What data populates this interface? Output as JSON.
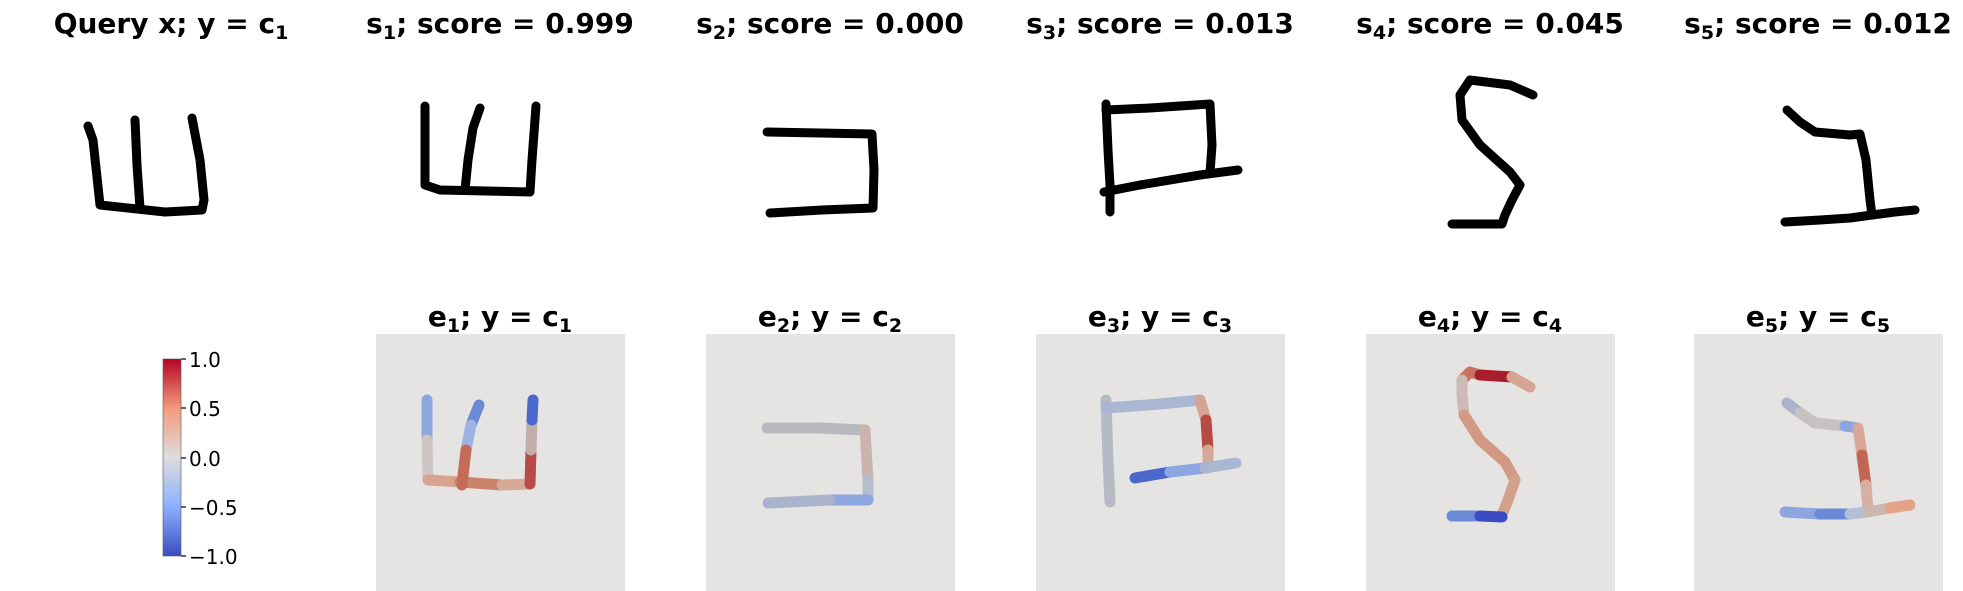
{
  "query": {
    "title_main": "Query x; y",
    "eq": " = ",
    "title_c": "c",
    "title_sub": "1"
  },
  "support": [
    {
      "id": "s1",
      "letter": "s",
      "sub": "1",
      "suffix": "; score = 0.999"
    },
    {
      "id": "s2",
      "letter": "s",
      "sub": "2",
      "suffix": "; score = 0.000"
    },
    {
      "id": "s3",
      "letter": "s",
      "sub": "3",
      "suffix": "; score = 0.013"
    },
    {
      "id": "s4",
      "letter": "s",
      "sub": "4",
      "suffix": "; score = 0.045"
    },
    {
      "id": "s5",
      "letter": "s",
      "sub": "5",
      "suffix": "; score = 0.012"
    }
  ],
  "explanations": [
    {
      "id": "e1",
      "letter": "e",
      "sub": "1",
      "mid": "; y",
      "eq": " = ",
      "c": "c",
      "csub": "1"
    },
    {
      "id": "e2",
      "letter": "e",
      "sub": "2",
      "mid": "; y",
      "eq": " = ",
      "c": "c",
      "csub": "2"
    },
    {
      "id": "e3",
      "letter": "e",
      "sub": "3",
      "mid": "; y",
      "eq": " = ",
      "c": "c",
      "csub": "3"
    },
    {
      "id": "e4",
      "letter": "e",
      "sub": "4",
      "mid": "; y",
      "eq": " = ",
      "c": "c",
      "csub": "4"
    },
    {
      "id": "e5",
      "letter": "e",
      "sub": "5",
      "mid": "; y",
      "eq": " = ",
      "c": "c",
      "csub": "5"
    }
  ],
  "colorbar": {
    "ticks": [
      "1.0",
      "0.5",
      "0.0",
      "−0.5",
      "−1.0"
    ],
    "min": -1.0,
    "max": 1.0,
    "colormap": "coolwarm",
    "low_color": "#3b4cc0",
    "mid_color": "#dddddd",
    "high_color": "#b40426"
  },
  "colors": {
    "stroke": "#000000",
    "panel_bg": "#e6e4e3",
    "neutral_stroke": "#b7b9bd"
  }
}
